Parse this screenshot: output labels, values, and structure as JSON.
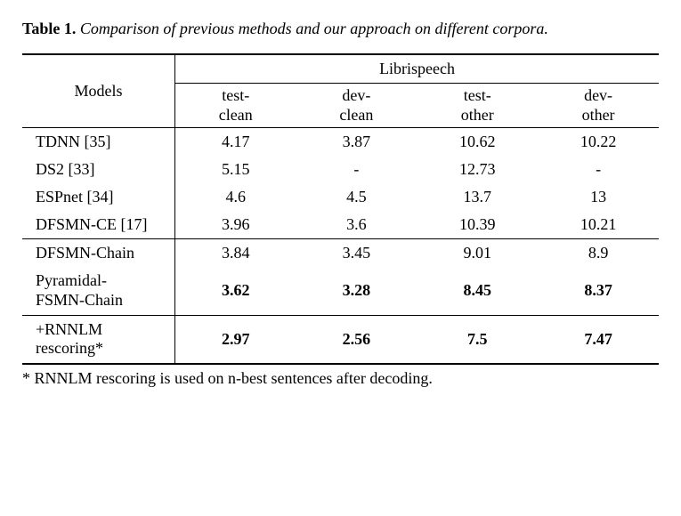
{
  "caption": {
    "label": "Table 1.",
    "text": "Comparison of previous methods and our approach on different corpora."
  },
  "table": {
    "header": {
      "models": "Models",
      "group": "Librispeech",
      "columns": [
        "test-\nclean",
        "dev-\nclean",
        "test-\nother",
        "dev-\nother"
      ],
      "col1_line1": "test-",
      "col1_line2": "clean",
      "col2_line1": "dev-",
      "col2_line2": "clean",
      "col3_line1": "test-",
      "col3_line2": "other",
      "col4_line1": "dev-",
      "col4_line2": "other"
    },
    "rows": [
      {
        "model": "TDNN [35]",
        "values": [
          "4.17",
          "3.87",
          "10.62",
          "10.22"
        ],
        "bold": false
      },
      {
        "model": "DS2 [33]",
        "values": [
          "5.15",
          "-",
          "12.73",
          "-"
        ],
        "bold": false
      },
      {
        "model": "ESPnet [34]",
        "values": [
          "4.6",
          "4.5",
          "13.7",
          "13"
        ],
        "bold": false
      },
      {
        "model": "DFSMN-CE [17]",
        "values": [
          "3.96",
          "3.6",
          "10.39",
          "10.21"
        ],
        "bold": false
      },
      {
        "model": "DFSMN-Chain",
        "values": [
          "3.84",
          "3.45",
          "9.01",
          "8.9"
        ],
        "bold": false
      },
      {
        "model_line1": "Pyramidal-",
        "model_line2": "FSMN-Chain",
        "values": [
          "3.62",
          "3.28",
          "8.45",
          "8.37"
        ],
        "bold": true,
        "multiline": true
      },
      {
        "model_line1": "+RNNLM",
        "model_line2": "rescoring*",
        "values": [
          "2.97",
          "2.56",
          "7.5",
          "7.47"
        ],
        "bold": true,
        "multiline": true
      }
    ]
  },
  "footnote": "* RNNLM rescoring is used on n-best sentences after decoding."
}
